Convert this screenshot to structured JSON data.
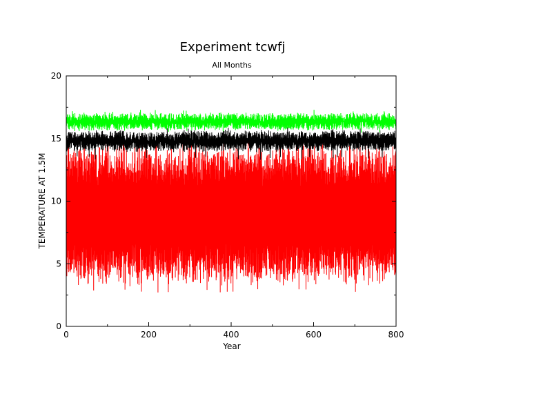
{
  "chart_data": {
    "type": "line",
    "title": "Experiment tcwfj",
    "subtitle": "All Months",
    "xlabel": "Year",
    "ylabel": "TEMPERATURE AT 1.5M",
    "xlim": [
      0,
      800
    ],
    "ylim": [
      0,
      20
    ],
    "x_ticks": [
      0,
      200,
      400,
      600,
      800
    ],
    "y_ticks": [
      0,
      5,
      10,
      15,
      20
    ],
    "x_tick_labels": [
      "0",
      "200",
      "400",
      "600",
      "800"
    ],
    "y_tick_labels": [
      "0",
      "5",
      "10",
      "15",
      "20"
    ],
    "grid": false,
    "legend": "none",
    "series": [
      {
        "color": "#ff0000",
        "style": "band",
        "x_range": [
          0,
          800
        ],
        "center": 8.9,
        "amplitude": 5.2,
        "spike": 0.6,
        "extremes": [
          2.7,
          15.0
        ]
      },
      {
        "color": "#000000",
        "style": "band",
        "x_range": [
          0,
          800
        ],
        "center": 14.8,
        "amplitude": 0.55,
        "spike": 0.35,
        "extremes": [
          13.3,
          15.9
        ]
      },
      {
        "color": "#00ff00",
        "style": "band",
        "x_range": [
          0,
          800
        ],
        "center": 16.35,
        "amplitude": 0.45,
        "spike": 0.3,
        "extremes": [
          15.4,
          17.3
        ]
      }
    ]
  }
}
